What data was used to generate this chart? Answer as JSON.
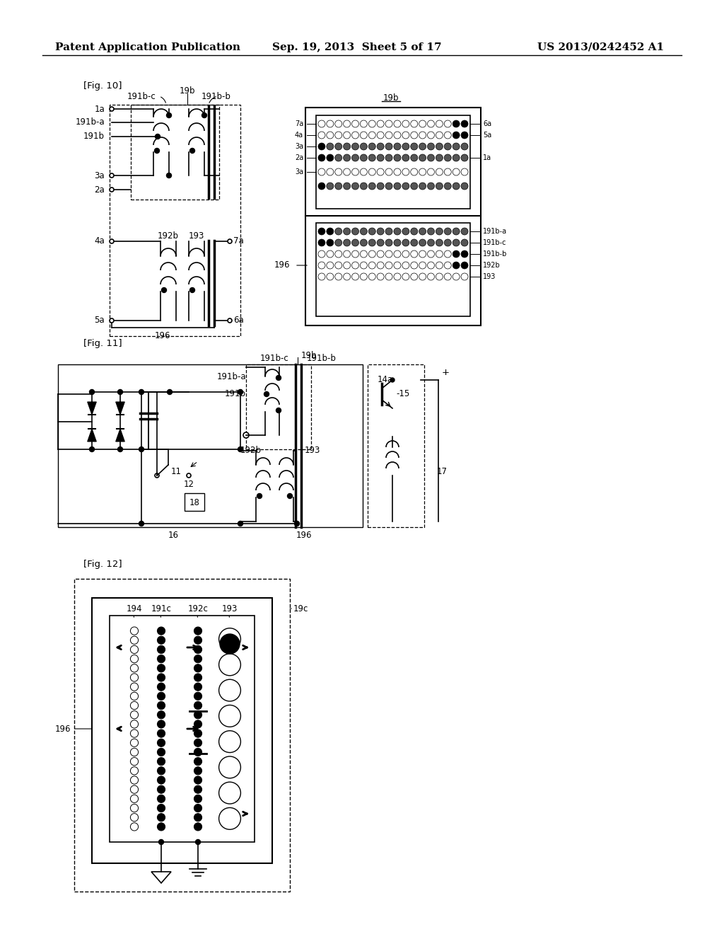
{
  "title_line1": "Patent Application Publication",
  "title_line2": "Sep. 19, 2013  Sheet 5 of 17",
  "title_line3": "US 2013/0242452 A1",
  "background": "#ffffff",
  "fig10_label": "[Fig. 10]",
  "fig11_label": "[Fig. 11]",
  "fig12_label": "[Fig. 12]"
}
